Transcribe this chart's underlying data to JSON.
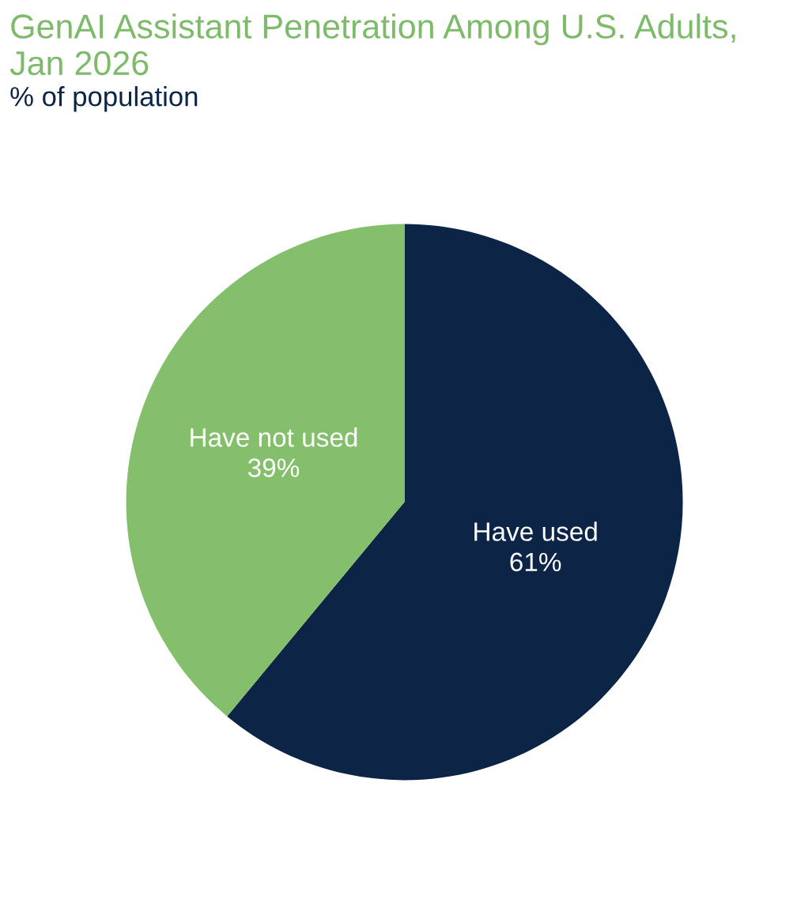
{
  "chart_data": {
    "type": "pie",
    "title": "GenAI Assistant Penetration Among U.S. Adults, Jan 2026",
    "subtitle": "% of population",
    "categories": [
      "Have used",
      "Have not used"
    ],
    "values": [
      61,
      39
    ],
    "colors": [
      "#0c2547",
      "#84c06c"
    ],
    "value_labels": [
      "61%",
      "39%"
    ],
    "legend": false
  }
}
